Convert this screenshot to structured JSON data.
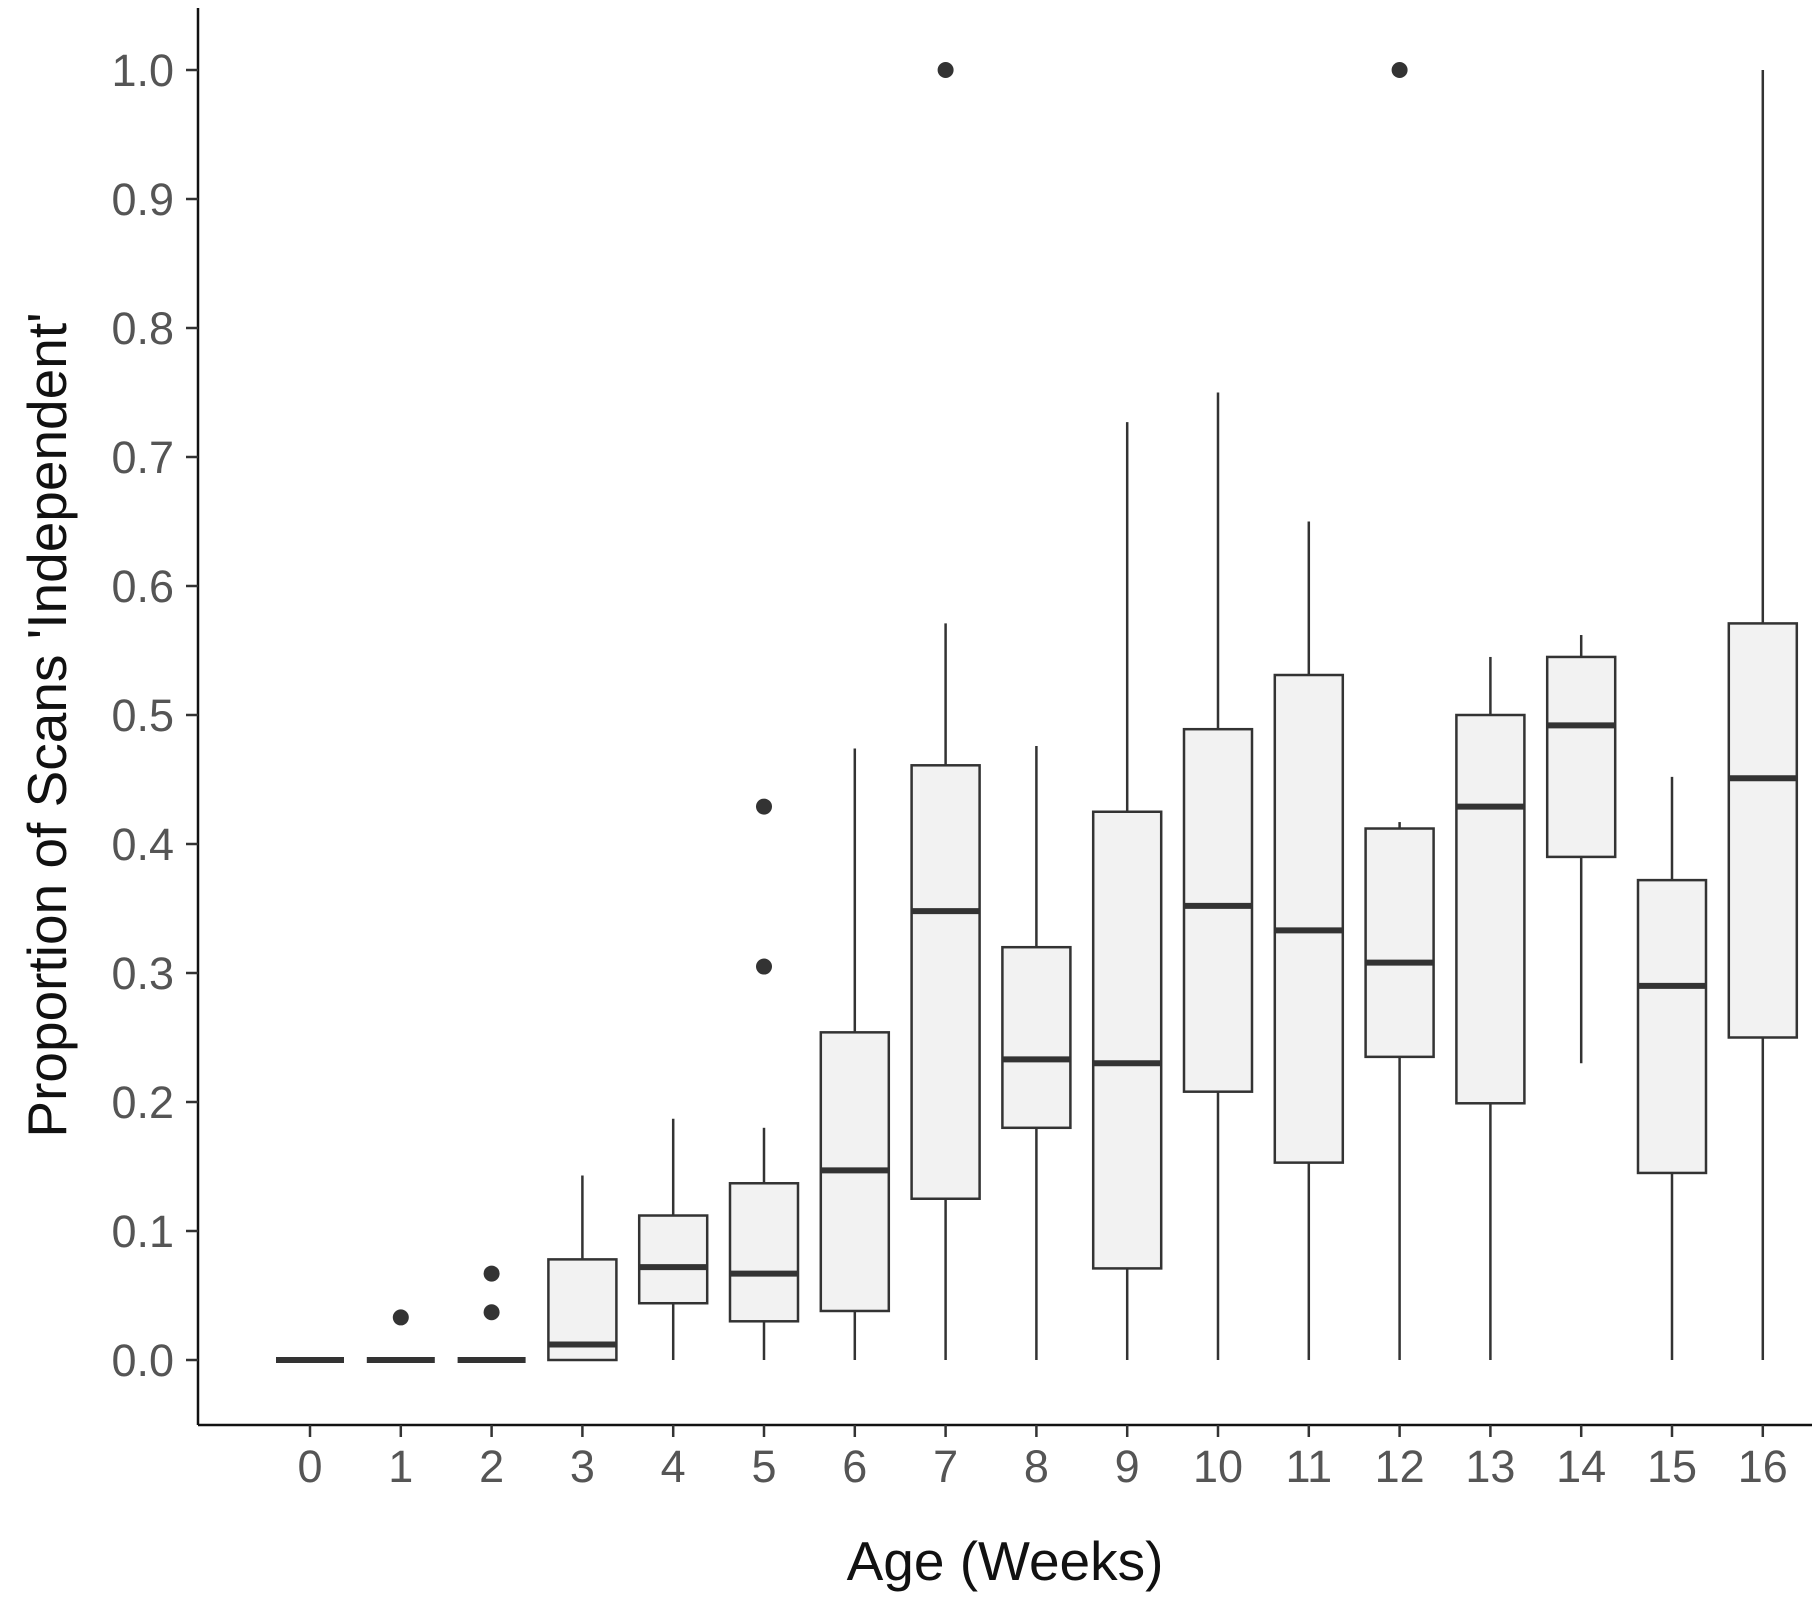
{
  "chart_data": {
    "type": "box",
    "title": "",
    "xlabel": "Age (Weeks)",
    "ylabel": "Proportion of Scans 'Independent'",
    "ylim": [
      -0.05,
      1.05
    ],
    "yticks": [
      "0.0",
      "0.1",
      "0.2",
      "0.3",
      "0.4",
      "0.5",
      "0.6",
      "0.7",
      "0.8",
      "0.9",
      "1.0"
    ],
    "categories": [
      "0",
      "1",
      "2",
      "3",
      "4",
      "5",
      "6",
      "7",
      "8",
      "9",
      "10",
      "11",
      "12",
      "13",
      "14",
      "15",
      "16"
    ],
    "grid": false,
    "legend": "none",
    "colors": {
      "box_fill": "#f2f2f2",
      "line": "#333333",
      "axis": "#111111",
      "tick_text": "#555555"
    },
    "boxes": [
      {
        "x": "0",
        "min": 0.0,
        "q1": 0.0,
        "median": 0.0,
        "q3": 0.0,
        "max": 0.0,
        "outliers": []
      },
      {
        "x": "1",
        "min": 0.0,
        "q1": 0.0,
        "median": 0.0,
        "q3": 0.0,
        "max": 0.0,
        "outliers": [
          0.033
        ]
      },
      {
        "x": "2",
        "min": 0.0,
        "q1": 0.0,
        "median": 0.0,
        "q3": 0.0,
        "max": 0.0,
        "outliers": [
          0.037,
          0.067
        ]
      },
      {
        "x": "3",
        "min": 0.0,
        "q1": 0.0,
        "median": 0.012,
        "q3": 0.078,
        "max": 0.143,
        "outliers": []
      },
      {
        "x": "4",
        "min": 0.0,
        "q1": 0.044,
        "median": 0.072,
        "q3": 0.112,
        "max": 0.187,
        "outliers": []
      },
      {
        "x": "5",
        "min": 0.0,
        "q1": 0.03,
        "median": 0.067,
        "q3": 0.137,
        "max": 0.18,
        "outliers": [
          0.305,
          0.429
        ]
      },
      {
        "x": "6",
        "min": 0.0,
        "q1": 0.038,
        "median": 0.147,
        "q3": 0.254,
        "max": 0.474,
        "outliers": []
      },
      {
        "x": "7",
        "min": 0.0,
        "q1": 0.125,
        "median": 0.348,
        "q3": 0.461,
        "max": 0.571,
        "outliers": [
          1.0
        ]
      },
      {
        "x": "8",
        "min": 0.0,
        "q1": 0.18,
        "median": 0.233,
        "q3": 0.32,
        "max": 0.476,
        "outliers": []
      },
      {
        "x": "9",
        "min": 0.0,
        "q1": 0.071,
        "median": 0.23,
        "q3": 0.425,
        "max": 0.727,
        "outliers": []
      },
      {
        "x": "10",
        "min": 0.0,
        "q1": 0.208,
        "median": 0.352,
        "q3": 0.489,
        "max": 0.75,
        "outliers": []
      },
      {
        "x": "11",
        "min": 0.0,
        "q1": 0.153,
        "median": 0.333,
        "q3": 0.531,
        "max": 0.65,
        "outliers": []
      },
      {
        "x": "12",
        "min": 0.0,
        "q1": 0.235,
        "median": 0.308,
        "q3": 0.412,
        "max": 0.417,
        "outliers": [
          1.0
        ]
      },
      {
        "x": "13",
        "min": 0.0,
        "q1": 0.199,
        "median": 0.429,
        "q3": 0.5,
        "max": 0.545,
        "outliers": []
      },
      {
        "x": "14",
        "min": 0.23,
        "q1": 0.39,
        "median": 0.492,
        "q3": 0.545,
        "max": 0.562,
        "outliers": []
      },
      {
        "x": "15",
        "min": 0.0,
        "q1": 0.145,
        "median": 0.29,
        "q3": 0.372,
        "max": 0.452,
        "outliers": []
      },
      {
        "x": "16",
        "min": 0.0,
        "q1": 0.25,
        "median": 0.451,
        "q3": 0.571,
        "max": 1.0,
        "outliers": []
      }
    ]
  }
}
